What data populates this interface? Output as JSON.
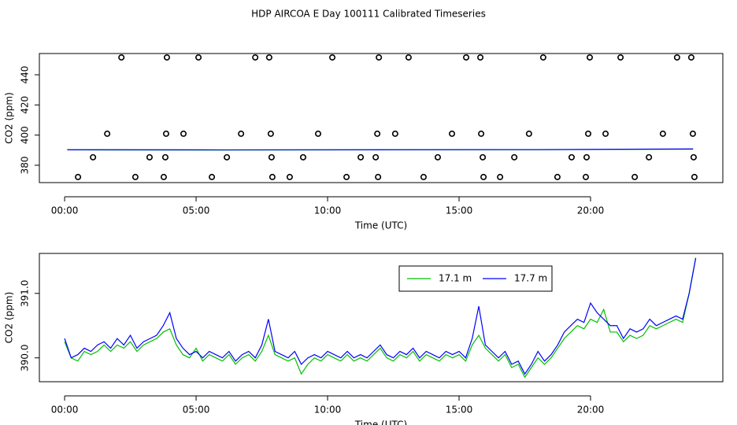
{
  "title": "HDP AIRCOA E  Day 100111  Calibrated Timeseries",
  "chart_data": [
    {
      "type": "scatter",
      "x_label": "Time (UTC)",
      "y_label": "CO2 (ppm)",
      "xlim": [
        -0.96,
        25.03
      ],
      "ylim": [
        368.5,
        454.1
      ],
      "xticks": [
        {
          "value": 0,
          "label": "00:00"
        },
        {
          "value": 5,
          "label": "05:00"
        },
        {
          "value": 10,
          "label": "10:00"
        },
        {
          "value": 15,
          "label": "15:00"
        },
        {
          "value": 20,
          "label": "20:00"
        }
      ],
      "yticks": [
        380,
        400,
        420,
        440
      ],
      "series": [
        {
          "mode": "points",
          "color": "#000000",
          "x": [
            2.16,
            3.89,
            5.09,
            7.25,
            7.78,
            10.18,
            11.95,
            13.08,
            15.27,
            15.81,
            18.2,
            19.97,
            21.14,
            23.29,
            23.83,
            1.62,
            3.86,
            4.52,
            6.71,
            7.84,
            9.64,
            11.89,
            12.57,
            14.73,
            15.84,
            17.66,
            19.91,
            20.57,
            22.75,
            23.89,
            1.08,
            3.23,
            3.83,
            6.17,
            7.87,
            9.07,
            11.26,
            11.83,
            14.19,
            15.9,
            17.1,
            19.28,
            19.85,
            22.22,
            23.92,
            0.51,
            2.69,
            3.77,
            5.6,
            7.9,
            8.56,
            10.72,
            11.92,
            13.65,
            15.93,
            16.56,
            18.74,
            19.82,
            21.68,
            23.95
          ],
          "values": [
            451.5,
            451.5,
            451.5,
            451.5,
            451.5,
            451.5,
            451.5,
            451.5,
            451.5,
            451.5,
            451.5,
            451.5,
            451.5,
            451.5,
            451.5,
            400.9,
            400.9,
            400.9,
            400.9,
            400.9,
            400.9,
            400.9,
            400.9,
            400.9,
            400.9,
            400.9,
            400.9,
            400.9,
            400.9,
            400.9,
            385.3,
            385.3,
            385.3,
            385.3,
            385.3,
            385.3,
            385.3,
            385.3,
            385.3,
            385.3,
            385.3,
            385.3,
            385.3,
            385.3,
            385.3,
            372.2,
            372.2,
            372.2,
            372.2,
            372.2,
            372.2,
            372.2,
            372.2,
            372.2,
            372.2,
            372.2,
            372.2,
            372.2,
            372.2,
            372.2
          ]
        },
        {
          "mode": "lines",
          "color": "#00c000",
          "x": [
            0.1,
            6,
            12,
            18,
            23.9
          ],
          "values": [
            390.2,
            390.1,
            390.2,
            390.3,
            390.7
          ]
        },
        {
          "mode": "lines",
          "color": "#0000ff",
          "x": [
            0.1,
            6,
            12,
            18,
            23.9
          ],
          "values": [
            390.3,
            390.2,
            390.3,
            390.4,
            390.8
          ]
        }
      ]
    },
    {
      "type": "line",
      "x_label": "Time (UTC)",
      "y_label": "CO2 (ppm)",
      "xlim": [
        -0.96,
        25.03
      ],
      "ylim": [
        389.63,
        391.62
      ],
      "xticks": [
        {
          "value": 0,
          "label": "00:00"
        },
        {
          "value": 5,
          "label": "05:00"
        },
        {
          "value": 10,
          "label": "10:00"
        },
        {
          "value": 15,
          "label": "15:00"
        },
        {
          "value": 20,
          "label": "20:00"
        }
      ],
      "yticks": [
        {
          "value": 390,
          "label": "390.0"
        },
        {
          "value": 391,
          "label": "391.0"
        }
      ],
      "legend": "top-right",
      "x": [
        0,
        0.25,
        0.5,
        0.75,
        1,
        1.25,
        1.5,
        1.75,
        2,
        2.25,
        2.5,
        2.75,
        3,
        3.25,
        3.5,
        3.75,
        4,
        4.25,
        4.5,
        4.75,
        5,
        5.25,
        5.5,
        5.75,
        6,
        6.25,
        6.5,
        6.75,
        7,
        7.25,
        7.5,
        7.75,
        8,
        8.25,
        8.5,
        8.75,
        9,
        9.25,
        9.5,
        9.75,
        10,
        10.25,
        10.5,
        10.75,
        11,
        11.25,
        11.5,
        11.75,
        12,
        12.25,
        12.5,
        12.75,
        13,
        13.25,
        13.5,
        13.75,
        14,
        14.25,
        14.5,
        14.75,
        15,
        15.25,
        15.5,
        15.75,
        16,
        16.25,
        16.5,
        16.75,
        17,
        17.25,
        17.5,
        17.75,
        18,
        18.25,
        18.5,
        18.75,
        19,
        19.25,
        19.5,
        19.75,
        20,
        20.25,
        20.5,
        20.75,
        21,
        21.25,
        21.5,
        21.75,
        22,
        22.25,
        22.5,
        22.75,
        23,
        23.25,
        23.5,
        23.75,
        24
      ],
      "series": [
        {
          "name": "17.1 m",
          "color": "#00c000",
          "values": [
            390.25,
            390.0,
            389.95,
            390.1,
            390.05,
            390.1,
            390.2,
            390.1,
            390.2,
            390.15,
            390.25,
            390.1,
            390.2,
            390.25,
            390.3,
            390.4,
            390.45,
            390.2,
            390.05,
            390.0,
            390.15,
            389.95,
            390.05,
            390.0,
            389.95,
            390.05,
            389.9,
            390.0,
            390.05,
            389.95,
            390.1,
            390.35,
            390.05,
            390.0,
            389.95,
            390.0,
            389.75,
            389.9,
            390.0,
            389.95,
            390.05,
            390.0,
            389.95,
            390.05,
            389.95,
            390.0,
            389.95,
            390.05,
            390.15,
            390.0,
            389.95,
            390.05,
            390.0,
            390.1,
            389.95,
            390.05,
            390.0,
            389.95,
            390.05,
            390.0,
            390.05,
            389.95,
            390.2,
            390.35,
            390.15,
            390.05,
            389.95,
            390.05,
            389.85,
            389.9,
            389.7,
            389.85,
            390.0,
            389.9,
            390.0,
            390.15,
            390.3,
            390.4,
            390.5,
            390.45,
            390.6,
            390.55,
            390.75,
            390.4,
            390.4,
            390.25,
            390.35,
            390.3,
            390.35,
            390.5,
            390.45,
            390.5,
            390.55,
            390.6,
            390.55,
            391.0,
            391.55
          ]
        },
        {
          "name": "17.7 m",
          "color": "#0000ff",
          "values": [
            390.3,
            390.0,
            390.05,
            390.15,
            390.1,
            390.2,
            390.25,
            390.15,
            390.3,
            390.2,
            390.35,
            390.15,
            390.25,
            390.3,
            390.35,
            390.5,
            390.7,
            390.3,
            390.15,
            390.05,
            390.1,
            390.0,
            390.1,
            390.05,
            390.0,
            390.1,
            389.95,
            390.05,
            390.1,
            390.0,
            390.2,
            390.6,
            390.1,
            390.05,
            390.0,
            390.1,
            389.9,
            390.0,
            390.05,
            390.0,
            390.1,
            390.05,
            390.0,
            390.1,
            390.0,
            390.05,
            390.0,
            390.1,
            390.2,
            390.05,
            390.0,
            390.1,
            390.05,
            390.15,
            390.0,
            390.1,
            390.05,
            390.0,
            390.1,
            390.05,
            390.1,
            390.0,
            390.3,
            390.8,
            390.2,
            390.1,
            390.0,
            390.1,
            389.9,
            389.95,
            389.75,
            389.9,
            390.1,
            389.95,
            390.05,
            390.2,
            390.4,
            390.5,
            390.6,
            390.55,
            390.85,
            390.7,
            390.6,
            390.5,
            390.5,
            390.3,
            390.45,
            390.4,
            390.45,
            390.6,
            390.5,
            390.55,
            390.6,
            390.65,
            390.6,
            391.0,
            391.55
          ]
        }
      ]
    }
  ]
}
